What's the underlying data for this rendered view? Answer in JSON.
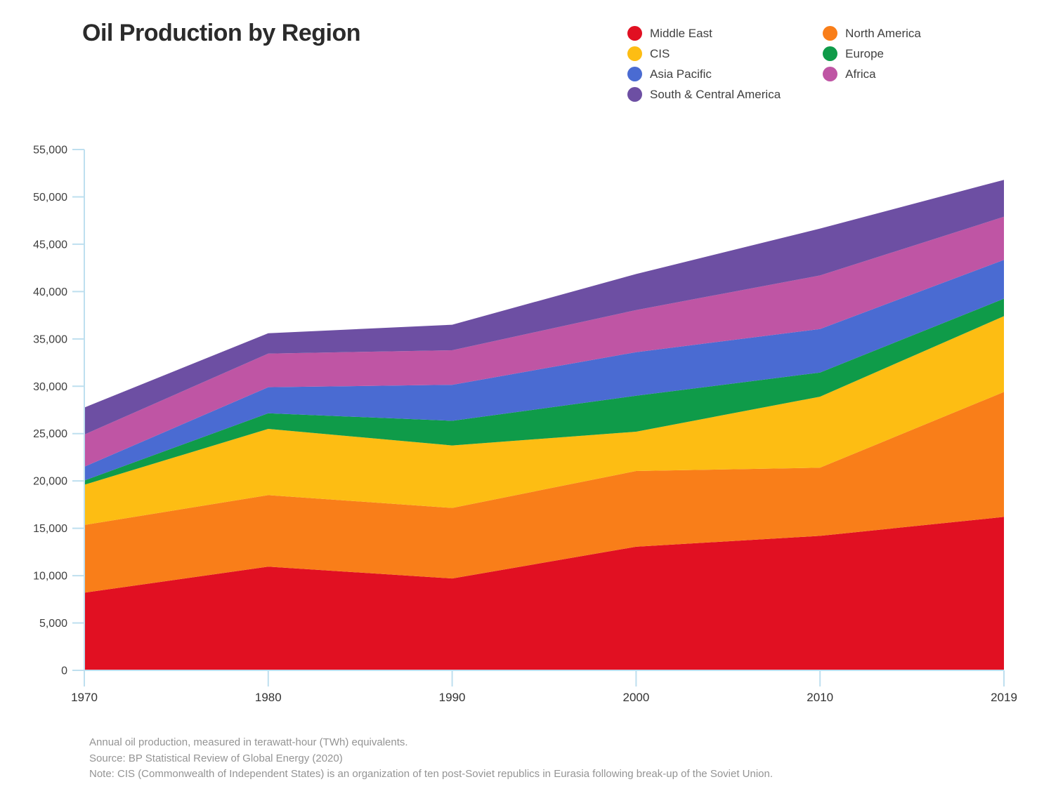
{
  "header": {
    "title": "Oil Production by Region"
  },
  "legend": {
    "columns": [
      [
        "Middle East",
        "CIS",
        "Asia Pacific",
        "South & Central America"
      ],
      [
        "North America",
        "Europe",
        "Africa"
      ]
    ]
  },
  "chart_data": {
    "type": "area",
    "stacked": true,
    "title": "Oil Production by Region",
    "xlabel": "",
    "ylabel": "",
    "x": [
      1970,
      1980,
      1990,
      2000,
      2010,
      2019
    ],
    "x_tick_labels": [
      "1970",
      "1980",
      "1990",
      "2000",
      "2010",
      "2019"
    ],
    "ylim": [
      0,
      55000
    ],
    "ytick_step": 5000,
    "grid": false,
    "legend_position": "top-right",
    "axis_color": "#bedfef",
    "unit": "TWh",
    "series": [
      {
        "name": "Middle East",
        "color": "#e11022",
        "values": [
          8200,
          10950,
          9700,
          13050,
          14200,
          16200
        ]
      },
      {
        "name": "North America",
        "color": "#f97e19",
        "values": [
          7150,
          7550,
          7450,
          8000,
          7200,
          13200
        ]
      },
      {
        "name": "CIS",
        "color": "#fdbd13",
        "values": [
          4250,
          7000,
          6600,
          4150,
          7500,
          8000
        ]
      },
      {
        "name": "Europe",
        "color": "#0f9b49",
        "values": [
          450,
          1650,
          2600,
          3800,
          2550,
          1850
        ]
      },
      {
        "name": "Asia Pacific",
        "color": "#4a6bd2",
        "values": [
          1450,
          2750,
          3800,
          4600,
          4600,
          4100
        ]
      },
      {
        "name": "Africa",
        "color": "#bf55a4",
        "values": [
          3400,
          3550,
          3650,
          4450,
          5650,
          4550
        ]
      },
      {
        "name": "South & Central America",
        "color": "#6d4fa3",
        "values": [
          2850,
          2150,
          2700,
          3800,
          4950,
          3900
        ]
      }
    ]
  },
  "footer": {
    "line1": "Annual oil production, measured in terawatt-hour (TWh) equivalents.",
    "line2": "Source: BP Statistical Review of Global Energy (2020)",
    "line3": "Note: CIS (Commonwealth of Independent States) is an organization of ten post-Soviet republics in Eurasia following break-up of the Soviet Union."
  }
}
